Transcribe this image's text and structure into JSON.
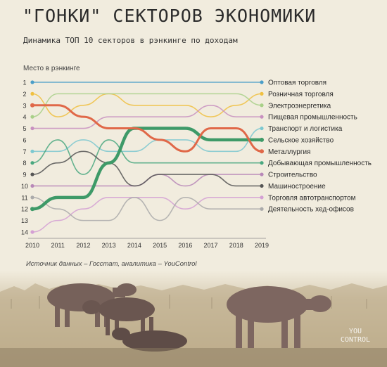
{
  "header": {
    "title": "\"ГОНКИ\" СЕКТОРОВ ЭКОНОМИКИ",
    "subtitle": "Динамика ТОП 10 секторов в рэнкинге по доходам"
  },
  "source": "Источник данных – Госстат, аналитика – YouControl",
  "logo": {
    "line1": "YOU",
    "line2": "CONTROL"
  },
  "chart_data": {
    "type": "line",
    "ylabel": "Место в рэнкинге",
    "xlabel": "",
    "x": [
      2010,
      2011,
      2012,
      2013,
      2014,
      2015,
      2016,
      2017,
      2018,
      2019
    ],
    "yticks": [
      1,
      2,
      3,
      4,
      5,
      6,
      7,
      8,
      9,
      10,
      11,
      12,
      13,
      14
    ],
    "ylim": [
      1,
      14
    ],
    "y_inverted": true,
    "grid": false,
    "series": [
      {
        "name": "Оптовая торговля",
        "color": "#4a9ec8",
        "values": [
          1,
          1,
          1,
          1,
          1,
          1,
          1,
          1,
          1,
          1
        ]
      },
      {
        "name": "Розничная торговля",
        "color": "#f0c040",
        "values": [
          2,
          4,
          3,
          2,
          3,
          3,
          3,
          4,
          3,
          2
        ]
      },
      {
        "name": "Электроэнергетика",
        "color": "#a8d088",
        "values": [
          4,
          2,
          2,
          2,
          2,
          2,
          2,
          2,
          2,
          3
        ]
      },
      {
        "name": "Пищевая промышленность",
        "color": "#c890c0",
        "values": [
          5,
          5,
          5,
          4,
          4,
          4,
          4,
          3,
          4,
          4
        ]
      },
      {
        "name": "Транспорт и логистика",
        "color": "#7cc8d0",
        "values": [
          7,
          7,
          6,
          7,
          7,
          6,
          6,
          7,
          7,
          5
        ]
      },
      {
        "name": "Сельское хозяйство",
        "color": "#3e9a68",
        "values": [
          12,
          11,
          11,
          8,
          5,
          5,
          5,
          6,
          6,
          6
        ]
      },
      {
        "name": "Металлургия",
        "color": "#e06848",
        "values": [
          3,
          3,
          4,
          5,
          5,
          6,
          7,
          5,
          5,
          7
        ]
      },
      {
        "name": "Добывающая промышленность",
        "color": "#4aa880",
        "values": [
          8,
          6,
          9,
          6,
          8,
          8,
          8,
          8,
          8,
          8
        ]
      },
      {
        "name": "Строительство",
        "color": "#b888b8",
        "values": [
          10,
          10,
          10,
          10,
          10,
          9,
          10,
          9,
          9,
          9
        ]
      },
      {
        "name": "Машиностроение",
        "color": "#555555",
        "values": [
          9,
          8,
          7,
          8,
          10,
          9,
          9,
          9,
          10,
          10
        ]
      },
      {
        "name": "Торговля автотранспортом",
        "color": "#d4a0d4",
        "values": [
          14,
          13,
          12,
          11,
          11,
          11,
          12,
          11,
          11,
          11
        ]
      },
      {
        "name": "Деятельность хед-офисов",
        "color": "#aaaaaa",
        "values": [
          11,
          12,
          13,
          13,
          11,
          13,
          11,
          12,
          12,
          12
        ]
      }
    ]
  }
}
